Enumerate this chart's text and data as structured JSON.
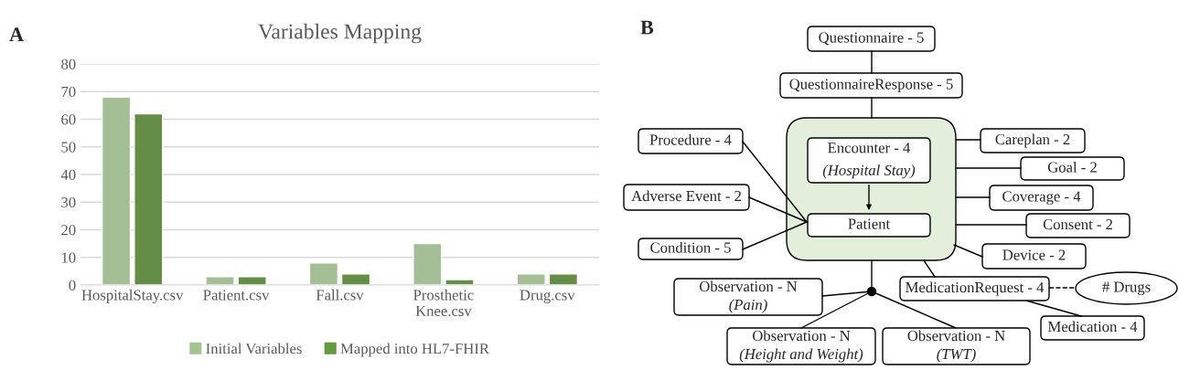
{
  "chart_data": [
    {
      "type": "bar",
      "title": "Variables Mapping",
      "annotations": [
        "A"
      ],
      "categories": [
        "HospitalStay.csv",
        "Patient.csv",
        "Fall.csv",
        "Prosthetic\nKnee.csv",
        "Drug.csv"
      ],
      "series": [
        {
          "name": "Initial Variables",
          "color": "#a2c58f",
          "values": [
            68,
            3,
            8,
            15,
            4
          ]
        },
        {
          "name": "Mapped into HL7-FHIR",
          "color": "#629a3c",
          "values": [
            62,
            3,
            4,
            2,
            4
          ]
        }
      ],
      "ylim": [
        0,
        80
      ],
      "yticks": [
        0,
        10,
        20,
        30,
        40,
        50,
        60,
        70,
        80
      ],
      "grid": "y",
      "legend": "bottom"
    },
    {
      "type": "other",
      "annotations": [
        "B",
        "Questionnaire - 5",
        "QuestionnaireResponse - 5",
        "Encounter - 4",
        "(Hospital Stay)",
        "Patient",
        "Procedure - 4",
        "Adverse Event - 2",
        "Condition - 5",
        "Careplan - 2",
        "Goal - 2",
        "Coverage - 4",
        "Consent - 2",
        "Device - 2",
        "MedicationRequest - 4",
        "# Drugs",
        "Medication - 4",
        "Observation - N",
        "(Pain)",
        "Observation - N",
        "(Height and Weight)",
        "Observation - N",
        "(TWT)"
      ]
    }
  ]
}
